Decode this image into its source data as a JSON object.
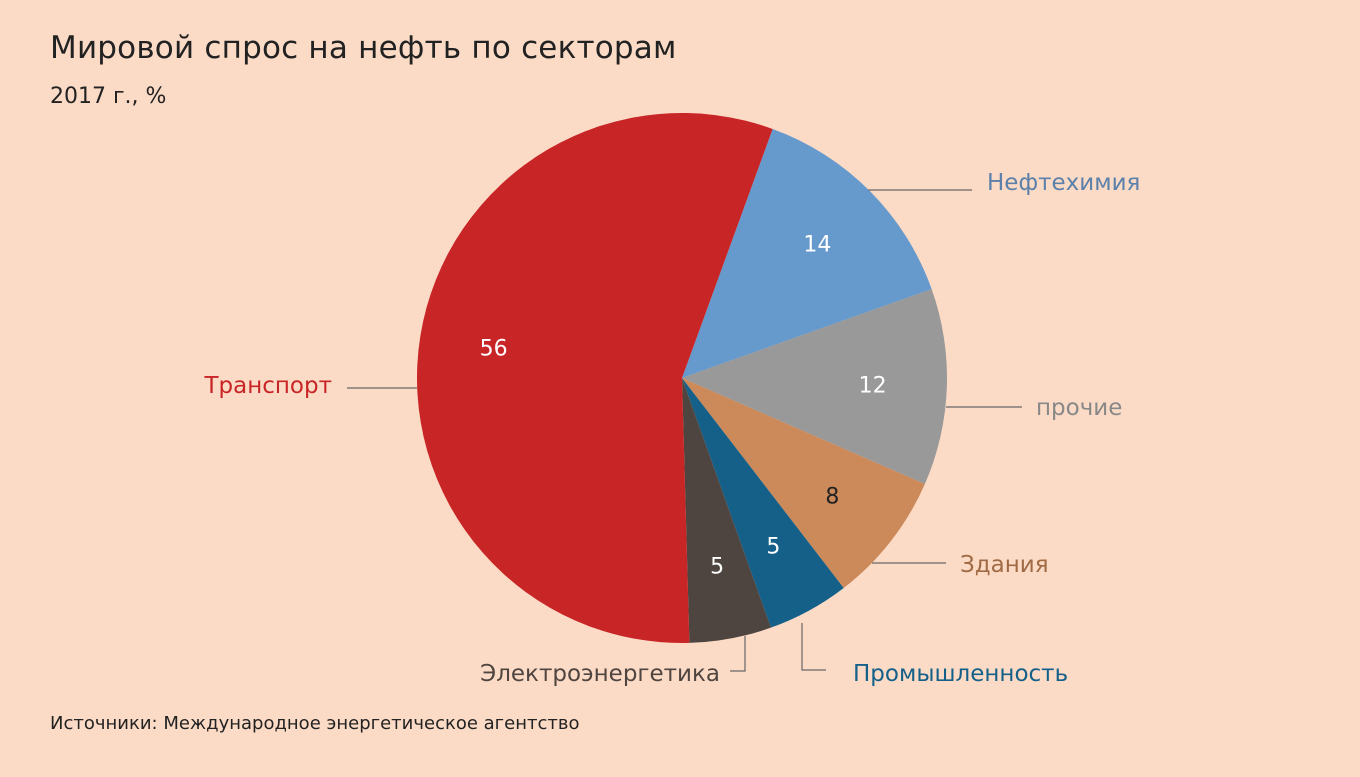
{
  "background_color": "#fcdbc6",
  "chart_data": {
    "type": "pie",
    "title": "Мировой спрос на нефть по секторам",
    "subtitle": "2017 г., %",
    "source": "Источники: Международное энергетическое агентство",
    "start_angle_deg": 20,
    "direction": "clockwise",
    "slices": [
      {
        "label": "Нефтехимия",
        "value": 14,
        "color": "#6699cc",
        "label_color": "#5b80aa",
        "value_color": "#ffffff"
      },
      {
        "label": "прочие",
        "value": 12,
        "color": "#999999",
        "label_color": "#888888",
        "value_color": "#ffffff"
      },
      {
        "label": "Здания",
        "value": 8,
        "color": "#cc8a5a",
        "label_color": "#a06a44",
        "value_color": "#222222"
      },
      {
        "label": "Промышленность",
        "value": 5,
        "color": "#146089",
        "label_color": "#146089",
        "value_color": "#ffffff"
      },
      {
        "label": "Электроэнергетика",
        "value": 5,
        "color": "#4f4540",
        "label_color": "#4f4540",
        "value_color": "#ffffff"
      },
      {
        "label": "Транспорт",
        "value": 56,
        "color": "#c82527",
        "label_color": "#c82527",
        "value_color": "#ffffff"
      }
    ]
  }
}
